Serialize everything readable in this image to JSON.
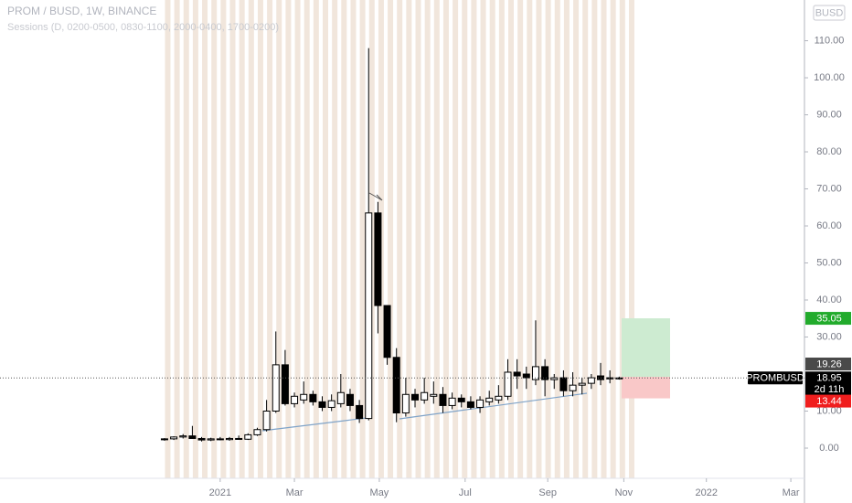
{
  "chart_data": {
    "type": "candlestick",
    "title": "PROM / BUSD, 1W, BINANCE",
    "subtitle": "Sessions (D, 0200-0500, 0830-1100, 2000-0400, 1700-0200)",
    "currency": "BUSD",
    "open": [
      2.3,
      2.5,
      3.0,
      3.3,
      2.6,
      2.2,
      2.5,
      2.3,
      2.6,
      2.4,
      3.6,
      5,
      10,
      22.5,
      12,
      13,
      14.5,
      12.5,
      11,
      12,
      14.5,
      11.5,
      8,
      63.5,
      38.5,
      24.5,
      9.5,
      14.5,
      13,
      14,
      14.5,
      11.5,
      13.5,
      12.5,
      11,
      12.5,
      13,
      14,
      20.5,
      20,
      18.5,
      22,
      18.5,
      19,
      15.5,
      17,
      17.5,
      19.5,
      19,
      18.7
    ],
    "high": [
      2.7,
      3.2,
      3.8,
      6.0,
      3.0,
      2.8,
      3.0,
      3.0,
      3.4,
      4.0,
      5.5,
      13,
      31.5,
      26.5,
      15,
      18,
      15.5,
      14,
      14.5,
      20,
      16,
      13,
      108,
      66.5,
      38.5,
      27,
      19,
      16,
      19,
      18,
      16.5,
      15,
      14.5,
      14,
      14,
      15.5,
      17,
      24,
      24,
      22,
      34.5,
      24,
      20,
      21,
      20.5,
      19,
      20,
      23,
      21,
      19.3
    ],
    "low": [
      2.0,
      2.2,
      2.6,
      2.8,
      1.8,
      1.9,
      2.1,
      2.0,
      2.3,
      2.2,
      3.3,
      4.5,
      9.5,
      11.5,
      11,
      12,
      11.5,
      10,
      10,
      11,
      10,
      6.8,
      7.5,
      31,
      22.5,
      7,
      8.5,
      11,
      12,
      12,
      9.5,
      10.5,
      11,
      10.5,
      9.5,
      11.5,
      12,
      13,
      16,
      16,
      17,
      14,
      16,
      14,
      14,
      14.5,
      16,
      17,
      17.5,
      18.5
    ],
    "close": [
      2.5,
      3.0,
      3.3,
      2.6,
      2.2,
      2.5,
      2.3,
      2.6,
      2.4,
      3.6,
      5,
      10,
      22.5,
      12,
      14,
      14.5,
      12.5,
      11,
      12.8,
      15,
      11.5,
      8,
      63.5,
      38.5,
      24.5,
      9.5,
      14.5,
      13,
      15,
      14.5,
      11.5,
      13.5,
      12.5,
      11,
      13,
      13.5,
      14,
      20.5,
      19.5,
      19,
      22,
      18.5,
      19,
      15.5,
      17,
      17.5,
      19,
      18.5,
      18.7,
      18.95
    ],
    "up_color": "#ffffff",
    "down_color": "#000000",
    "ylim": [
      -8.15,
      121.0
    ],
    "yticks": [
      {
        "value": 0,
        "label": "0.00"
      },
      {
        "value": 10,
        "label": "10.00"
      },
      {
        "value": 30,
        "label": "30.00"
      },
      {
        "value": 40,
        "label": "40.00"
      },
      {
        "value": 50,
        "label": "50.00"
      },
      {
        "value": 60,
        "label": "60.00"
      },
      {
        "value": 70,
        "label": "70.00"
      },
      {
        "value": 80,
        "label": "80.00"
      },
      {
        "value": 90,
        "label": "90.00"
      },
      {
        "value": 100,
        "label": "100.00"
      },
      {
        "value": 110,
        "label": "110.00"
      }
    ],
    "xlim": [
      -17.73,
      68.97
    ],
    "xticks": [
      {
        "value": 6.0,
        "label": "2021"
      },
      {
        "value": 14.0,
        "label": "Mar"
      },
      {
        "value": 23.15,
        "label": "May"
      },
      {
        "value": 32.4,
        "label": "Jul"
      },
      {
        "value": 41.3,
        "label": "Sep"
      },
      {
        "value": 49.5,
        "label": "Nov"
      },
      {
        "value": 58.4,
        "label": "2022"
      },
      {
        "value": 67.5,
        "label": "Mar"
      }
    ],
    "position": {
      "target": 35.05,
      "entry": 19.26,
      "stop": 13.44
    },
    "symbol_label": "PROMBUSD",
    "last_price": 18.95,
    "countdown": "2d 11h"
  }
}
